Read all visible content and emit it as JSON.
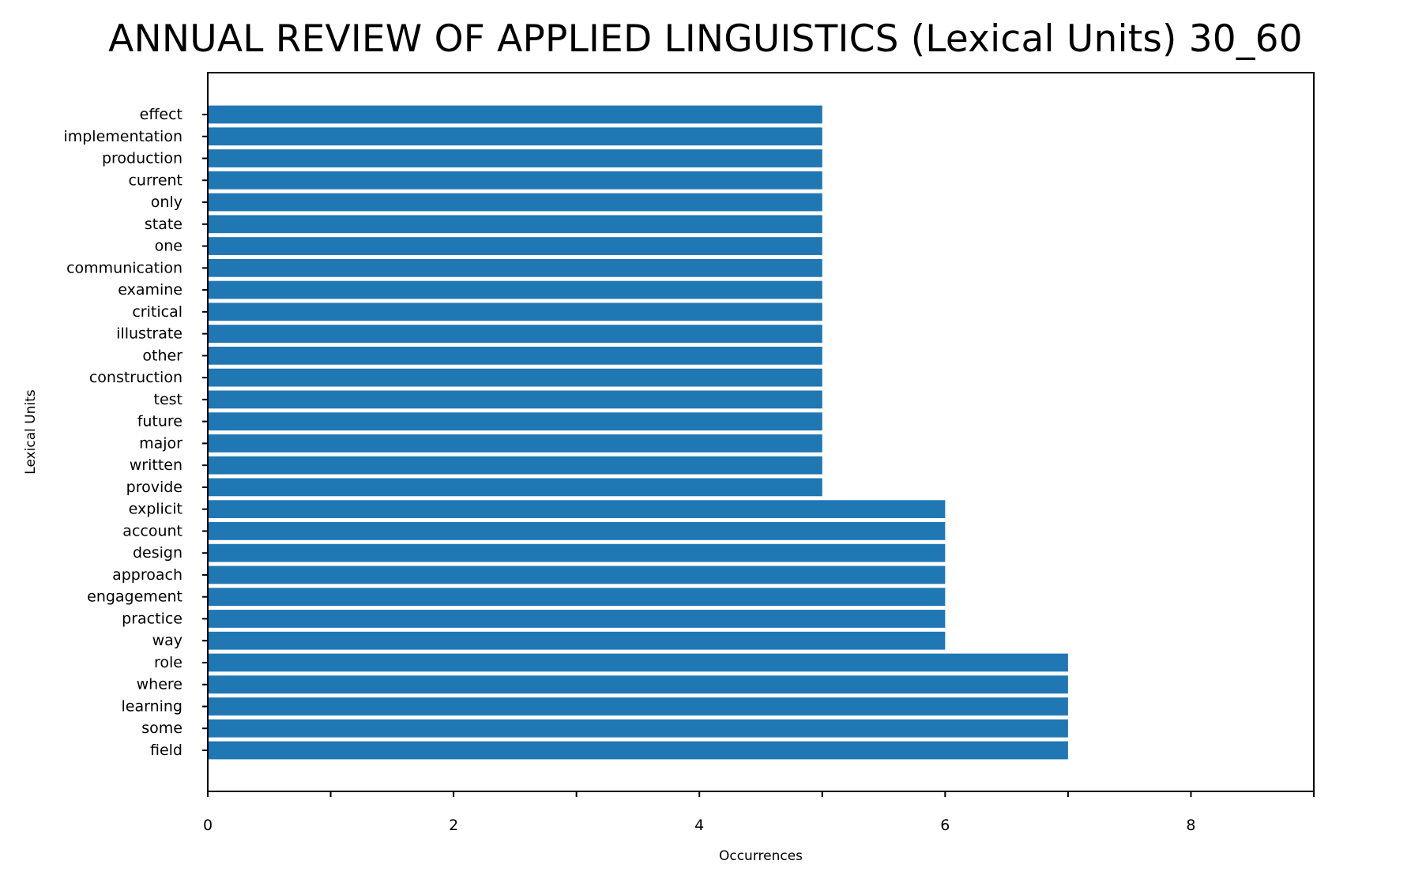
{
  "chart_data": {
    "type": "bar",
    "orientation": "horizontal",
    "title": "ANNUAL REVIEW OF APPLIED LINGUISTICS (Lexical Units) 30_60",
    "xlabel": "Occurrences",
    "ylabel": "Lexical Units",
    "xlim": [
      0,
      9
    ],
    "xticks": [
      0,
      2,
      4,
      6,
      8
    ],
    "grid": false,
    "bar_color": "#1f77b4",
    "categories": [
      "effect",
      "implementation",
      "production",
      "current",
      "only",
      "state",
      "one",
      "communication",
      "examine",
      "critical",
      "illustrate",
      "other",
      "construction",
      "test",
      "future",
      "major",
      "written",
      "provide",
      "explicit",
      "account",
      "design",
      "approach",
      "engagement",
      "practice",
      "way",
      "role",
      "where",
      "learning",
      "some",
      "field"
    ],
    "values": [
      5,
      5,
      5,
      5,
      5,
      5,
      5,
      5,
      5,
      5,
      5,
      5,
      5,
      5,
      5,
      5,
      5,
      5,
      6,
      6,
      6,
      6,
      6,
      6,
      6,
      7,
      7,
      7,
      7,
      7
    ]
  }
}
